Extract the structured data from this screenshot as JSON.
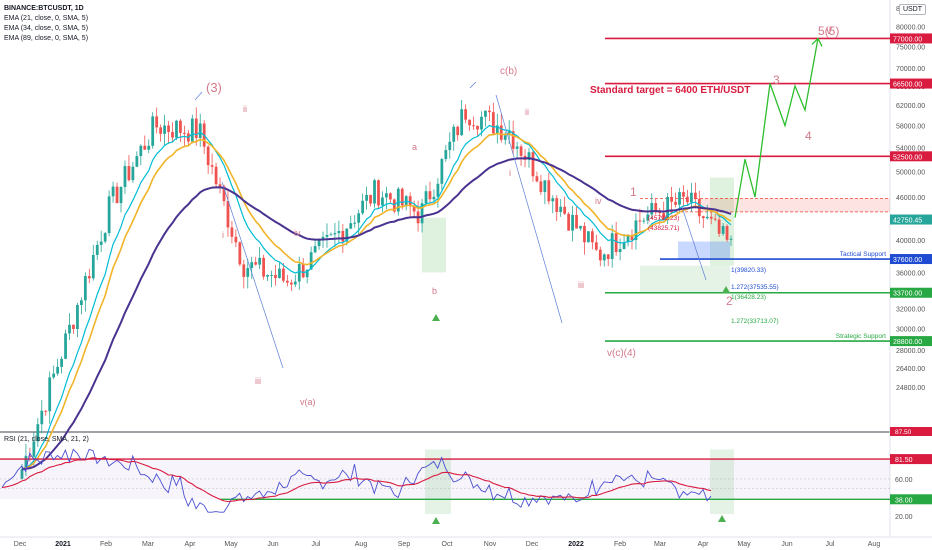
{
  "legend": {
    "symbol": "BINANCE:BTCUSDT, 1D",
    "ema1": "EMA (21, close, 0, SMA, 5)",
    "ema2": "EMA (34, close, 0, SMA, 5)",
    "ema3": "EMA (89, close, 0, SMA, 5)",
    "rsi": "RSI (21, close, SMA, 21, 2)"
  },
  "currency": "USDT",
  "target_text": "Standard target = 6400 ETH/USDT",
  "colors": {
    "up": "#26a69a",
    "down": "#ef5350",
    "ema21": "#00bcd4",
    "ema34": "#f0b429",
    "ema89": "#4a3290",
    "red_line": "#d81b3f",
    "green_line": "#27a843",
    "blue_line": "#1e4bd2",
    "wave_label": "#d47a8a",
    "projection": "#2ebd2e",
    "rsi_line": "#4b4fd0",
    "rsi_ma": "#d81b3f"
  },
  "chart_data": {
    "type": "candlestick",
    "price_axis": {
      "scale": "log",
      "range": [
        22000,
        85000
      ],
      "ticks": [
        24800,
        26400,
        28000,
        30000,
        32000,
        34000,
        36000,
        38000,
        40000,
        43000,
        46000,
        50000,
        54000,
        58000,
        62000,
        66000,
        70000,
        75000,
        80000,
        85000
      ]
    },
    "x_ticks": [
      "Dec",
      "2021",
      "Feb",
      "Mar",
      "Apr",
      "May",
      "Jun",
      "Jul",
      "Aug",
      "Sep",
      "Oct",
      "Nov",
      "Dec",
      "2022",
      "Feb",
      "Mar",
      "Apr",
      "May",
      "Jun",
      "Jul",
      "Aug"
    ],
    "price_path_monthly": [
      {
        "month": "Dec",
        "close": 19000
      },
      {
        "month": "2021",
        "close": 29000
      },
      {
        "month": "Feb",
        "close": 45000
      },
      {
        "month": "Mar",
        "close": 58000
      },
      {
        "month": "Apr",
        "close": 57000
      },
      {
        "month": "May",
        "close": 37000
      },
      {
        "month": "Jun",
        "close": 35000
      },
      {
        "month": "Jul",
        "close": 40000
      },
      {
        "month": "Aug",
        "close": 47000
      },
      {
        "month": "Sep",
        "close": 43500
      },
      {
        "month": "Oct",
        "close": 61000
      },
      {
        "month": "Nov",
        "close": 57000
      },
      {
        "month": "Dec",
        "close": 46000
      },
      {
        "month": "2022",
        "close": 38000
      },
      {
        "month": "Feb",
        "close": 43000
      },
      {
        "month": "Mar",
        "close": 45500
      },
      {
        "month": "Apr",
        "close": 39000
      }
    ],
    "horizontal_levels": [
      {
        "price": 77000,
        "label": "77000.00",
        "color": "red"
      },
      {
        "price": 66500,
        "label": "66500.00",
        "color": "red"
      },
      {
        "price": 52500,
        "label": "52500.00",
        "color": "red"
      },
      {
        "price": 37600,
        "label": "37600.00",
        "color": "blue",
        "name": "Tactical Support"
      },
      {
        "price": 33700,
        "label": "33700.00",
        "color": "green"
      },
      {
        "price": 28800,
        "label": "28800.00",
        "color": "green",
        "name": "Strategic Support"
      }
    ],
    "current_price": "42750.45",
    "fib_labels": [
      "(45792.23)",
      "(43825.71)",
      "1(39820.33)",
      "1.272(37535.55)",
      "1(36428.23)",
      "1.272(33713.07)"
    ],
    "wave_labels": [
      "(3)",
      "ii",
      "i",
      "iii",
      "iv",
      "v(a)",
      "a",
      "b",
      "c(b)",
      "ii",
      "i",
      "iii",
      "iv",
      "v(c)(4)",
      "1",
      "2",
      "3",
      "4",
      "5(5)",
      "v"
    ],
    "projection_path": [
      {
        "month": "Apr",
        "price": 43000
      },
      {
        "month": "Apr",
        "price": 52000
      },
      {
        "month": "Apr",
        "price": 46000
      },
      {
        "month": "May",
        "price": 66500
      },
      {
        "month": "May",
        "price": 58000
      },
      {
        "month": "Jun",
        "price": 66000
      },
      {
        "month": "Jun",
        "price": 61000
      },
      {
        "month": "Jul",
        "price": 77000
      }
    ],
    "rsi": {
      "levels": [
        81.5,
        38.0
      ],
      "axis_ticks": [
        20.0,
        40.0,
        60.0,
        81.5
      ],
      "axis_labels": [
        "81.50",
        "60.00",
        "38.00",
        "20.00"
      ],
      "extra_label": "87.50"
    }
  }
}
